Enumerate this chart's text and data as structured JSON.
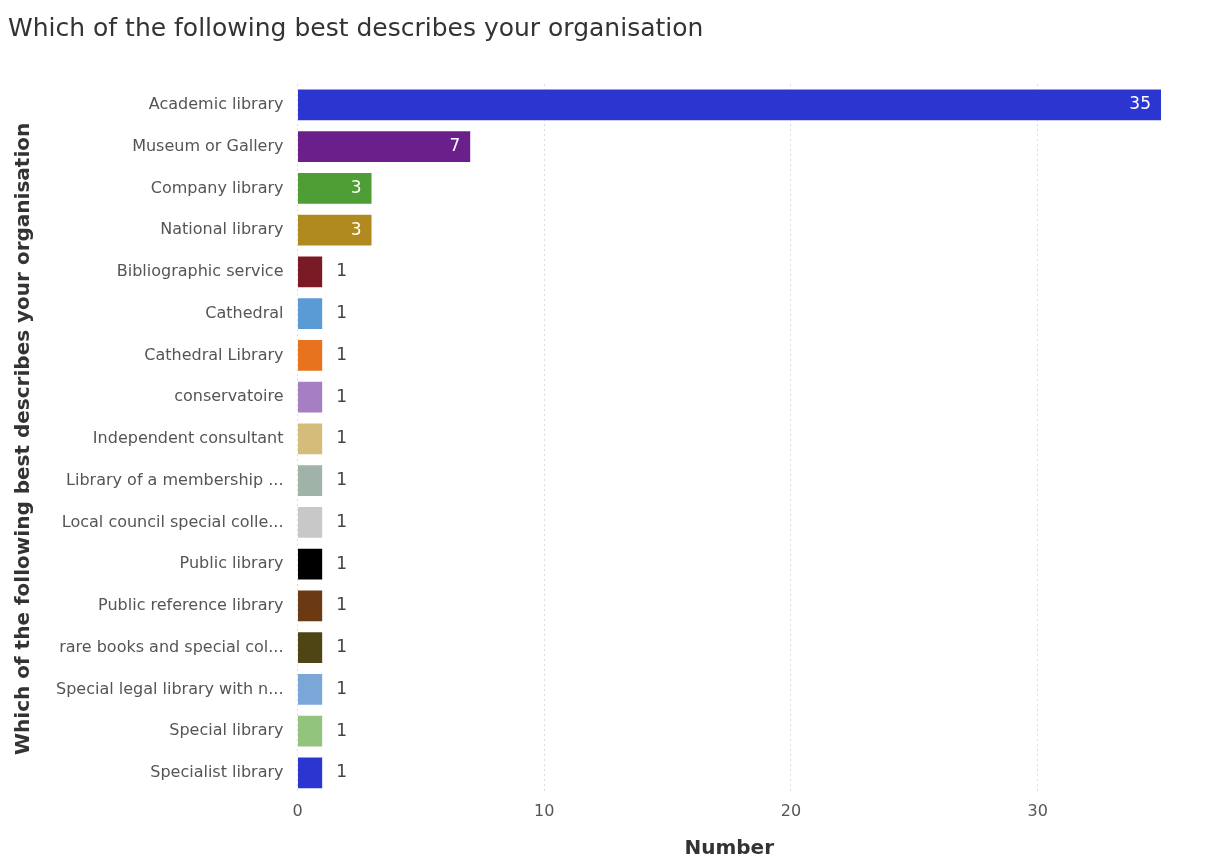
{
  "chart_data": {
    "type": "bar",
    "orientation": "horizontal",
    "title": "Which of the following best describes your organisation",
    "xlabel": "Number",
    "ylabel": "Which of the following best describes your organisation",
    "categories": [
      "Academic library",
      "Museum or Gallery",
      "Company library",
      "National library",
      "Bibliographic service",
      "Cathedral",
      "Cathedral Library",
      "conservatoire",
      "Independent consultant",
      "Library of a membership ...",
      "Local council special colle...",
      "Public library",
      "Public reference library",
      "rare books and special col...",
      "Special legal library with n...",
      "Special library",
      "Specialist library"
    ],
    "values": [
      35,
      7,
      3,
      3,
      1,
      1,
      1,
      1,
      1,
      1,
      1,
      1,
      1,
      1,
      1,
      1,
      1
    ],
    "colors": [
      "#2b36d1",
      "#6a1f8a",
      "#4f9e35",
      "#b08a1e",
      "#7a1a25",
      "#5b9bd5",
      "#e8731e",
      "#a57fc1",
      "#d4bd7a",
      "#9fb3a8",
      "#c8c8c8",
      "#000000",
      "#6b3a12",
      "#4f4414",
      "#7aa7d8",
      "#93c47d",
      "#2b36d1"
    ],
    "xlim": [
      0,
      35
    ],
    "xticks": [
      0,
      10,
      20,
      30
    ],
    "grid": "x",
    "legend": false,
    "data_labels": true
  }
}
